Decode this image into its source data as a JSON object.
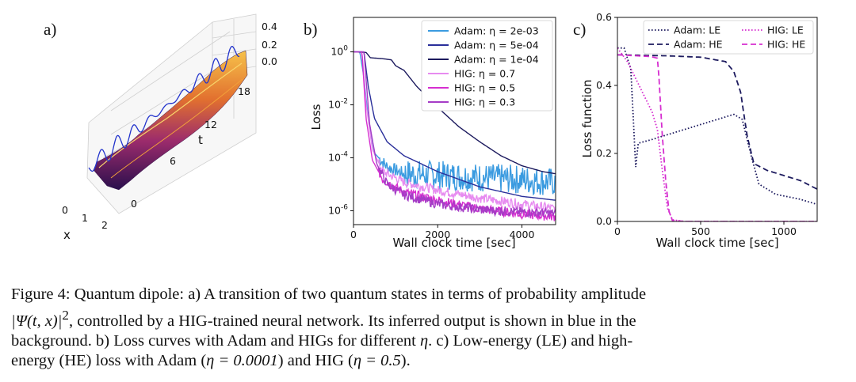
{
  "panels": {
    "a": {
      "label": "a)",
      "z_ticks": [
        "0.4",
        "0.2",
        "0.0"
      ],
      "t_label": "t",
      "t_ticks": [
        "18",
        "12",
        "6",
        "0"
      ],
      "x_label": "x",
      "x_ticks": [
        "0",
        "1",
        "2"
      ]
    },
    "b": {
      "label": "b)"
    },
    "c": {
      "label": "c)"
    }
  },
  "chart_data": [
    {
      "panel": "b",
      "type": "line",
      "xlabel": "Wall clock time [sec]",
      "ylabel": "Loss",
      "xlim": [
        0,
        4800
      ],
      "ylim": [
        3e-07,
        20
      ],
      "yscale": "log",
      "x_ticks": [
        0,
        2000,
        4000
      ],
      "x_tick_labels": [
        "0",
        "2000",
        "4000"
      ],
      "y_ticks": [
        1,
        0.01,
        0.0001,
        1e-06
      ],
      "y_tick_labels": [
        "10^0",
        "10^-2",
        "10^-4",
        "10^-6"
      ],
      "legend_position": "top-right",
      "series": [
        {
          "name": "Adam: η = 2e-03",
          "color": "#3b9be0",
          "style": "solid",
          "noisy": true,
          "points": [
            [
              0,
              1
            ],
            [
              150,
              1
            ],
            [
              250,
              0.1
            ],
            [
              350,
              0.003
            ],
            [
              500,
              0.00015
            ],
            [
              800,
              4.5e-05
            ],
            [
              1200,
              2.5e-05
            ],
            [
              2000,
              2.2e-05
            ],
            [
              3000,
              1.8e-05
            ],
            [
              4000,
              1.5e-05
            ],
            [
              4800,
              1.2e-05
            ]
          ]
        },
        {
          "name": "Adam: η = 5e-04",
          "color": "#2a2f9a",
          "style": "solid",
          "noisy": false,
          "points": [
            [
              0,
              1
            ],
            [
              250,
              1
            ],
            [
              350,
              0.05
            ],
            [
              500,
              0.003
            ],
            [
              800,
              0.0004
            ],
            [
              1200,
              0.00012
            ],
            [
              2000,
              3e-05
            ],
            [
              3000,
              8e-06
            ],
            [
              4000,
              3.5e-06
            ],
            [
              4800,
              2.5e-06
            ]
          ]
        },
        {
          "name": "Adam: η = 1e-04",
          "color": "#1c1a5e",
          "style": "solid",
          "noisy": false,
          "points": [
            [
              0,
              1
            ],
            [
              300,
              0.95
            ],
            [
              400,
              0.6
            ],
            [
              700,
              0.55
            ],
            [
              900,
              0.5
            ],
            [
              1000,
              0.3
            ],
            [
              1200,
              0.2
            ],
            [
              1500,
              0.05
            ],
            [
              2000,
              0.008
            ],
            [
              2500,
              0.0015
            ],
            [
              3000,
              0.0004
            ],
            [
              3500,
              0.00012
            ],
            [
              4000,
              5e-05
            ],
            [
              4500,
              3e-05
            ],
            [
              4800,
              2.5e-05
            ]
          ]
        },
        {
          "name": "HIG: η = 0.7",
          "color": "#e78bf0",
          "style": "solid",
          "noisy": true,
          "points": [
            [
              0,
              1
            ],
            [
              200,
              1
            ],
            [
              300,
              0.01
            ],
            [
              450,
              0.0002
            ],
            [
              700,
              3e-05
            ],
            [
              1200,
              1.2e-05
            ],
            [
              2000,
              6e-06
            ],
            [
              3000,
              3e-06
            ],
            [
              4000,
              1.8e-06
            ],
            [
              4800,
              1.2e-06
            ]
          ]
        },
        {
          "name": "HIG: η = 0.5",
          "color": "#d62ed0",
          "style": "solid",
          "noisy": true,
          "points": [
            [
              0,
              1
            ],
            [
              200,
              1
            ],
            [
              300,
              0.003
            ],
            [
              450,
              8e-05
            ],
            [
              700,
              1.5e-05
            ],
            [
              1200,
              5e-06
            ],
            [
              2000,
              2.5e-06
            ],
            [
              3000,
              1.2e-06
            ],
            [
              4000,
              7.5e-07
            ],
            [
              4800,
              6e-07
            ]
          ]
        },
        {
          "name": "HIG: η = 0.3",
          "color": "#a53cc6",
          "style": "solid",
          "noisy": true,
          "points": [
            [
              0,
              1
            ],
            [
              250,
              1
            ],
            [
              380,
              0.002
            ],
            [
              550,
              6e-05
            ],
            [
              800,
              1e-05
            ],
            [
              1200,
              4e-06
            ],
            [
              2000,
              1.8e-06
            ],
            [
              3000,
              1.1e-06
            ],
            [
              4000,
              9e-07
            ],
            [
              4800,
              8e-07
            ]
          ]
        }
      ]
    },
    {
      "panel": "c",
      "type": "line",
      "xlabel": "Wall clock time [sec]",
      "ylabel": "Loss function",
      "xlim": [
        0,
        1200
      ],
      "ylim": [
        0,
        0.6
      ],
      "x_ticks": [
        0,
        500,
        1000
      ],
      "x_tick_labels": [
        "0",
        "500",
        "1000"
      ],
      "y_ticks": [
        0,
        0.2,
        0.4,
        0.6
      ],
      "y_tick_labels": [
        "0.0",
        "0.2",
        "0.4",
        "0.6"
      ],
      "legend_position": "top",
      "series": [
        {
          "name": "Adam: LE",
          "color": "#1c1a5e",
          "style": "dotted",
          "points": [
            [
              0,
              0.51
            ],
            [
              40,
              0.51
            ],
            [
              80,
              0.45
            ],
            [
              110,
              0.16
            ],
            [
              125,
              0.23
            ],
            [
              200,
              0.24
            ],
            [
              400,
              0.27
            ],
            [
              600,
              0.3
            ],
            [
              700,
              0.315
            ],
            [
              750,
              0.3
            ],
            [
              800,
              0.2
            ],
            [
              850,
              0.11
            ],
            [
              950,
              0.08
            ],
            [
              1100,
              0.065
            ],
            [
              1200,
              0.05
            ]
          ]
        },
        {
          "name": "Adam: HE",
          "color": "#1c1a5e",
          "style": "dashed",
          "points": [
            [
              0,
              0.49
            ],
            [
              300,
              0.487
            ],
            [
              500,
              0.483
            ],
            [
              650,
              0.47
            ],
            [
              700,
              0.44
            ],
            [
              740,
              0.38
            ],
            [
              780,
              0.25
            ],
            [
              820,
              0.17
            ],
            [
              900,
              0.15
            ],
            [
              1000,
              0.135
            ],
            [
              1100,
              0.12
            ],
            [
              1200,
              0.095
            ]
          ]
        },
        {
          "name": "HIG: LE",
          "color": "#d62ed0",
          "style": "dotted",
          "points": [
            [
              0,
              0.51
            ],
            [
              60,
              0.47
            ],
            [
              120,
              0.41
            ],
            [
              170,
              0.36
            ],
            [
              210,
              0.32
            ],
            [
              240,
              0.27
            ],
            [
              270,
              0.15
            ],
            [
              300,
              0.04
            ],
            [
              330,
              0.005
            ],
            [
              400,
              0
            ],
            [
              1200,
              0
            ]
          ]
        },
        {
          "name": "HIG: HE",
          "color": "#d62ed0",
          "style": "dashed",
          "points": [
            [
              0,
              0.49
            ],
            [
              200,
              0.485
            ],
            [
              240,
              0.48
            ],
            [
              250,
              0.42
            ],
            [
              270,
              0.25
            ],
            [
              290,
              0.12
            ],
            [
              310,
              0.03
            ],
            [
              330,
              0.003
            ],
            [
              400,
              0
            ],
            [
              1200,
              0
            ]
          ]
        }
      ]
    }
  ],
  "caption": {
    "line1": "Figure 4: Quantum dipole: a) A transition of two quantum states in terms of probability amplitude",
    "line2a": "|Ψ(t, x)|",
    "line2sup": "2",
    "line2b": ", controlled by a HIG-trained neural network. Its inferred output is shown in blue in the",
    "line3a": "background. b) Loss curves with Adam and HIGs for different ",
    "line3eta": "η",
    "line3b": ". c) Low-energy (LE) and high-",
    "line4a": "energy (HE) loss with Adam (",
    "line4eq1": "η = 0.0001",
    "line4b": ") and HIG (",
    "line4eq2": "η = 0.5",
    "line4c": ")."
  }
}
